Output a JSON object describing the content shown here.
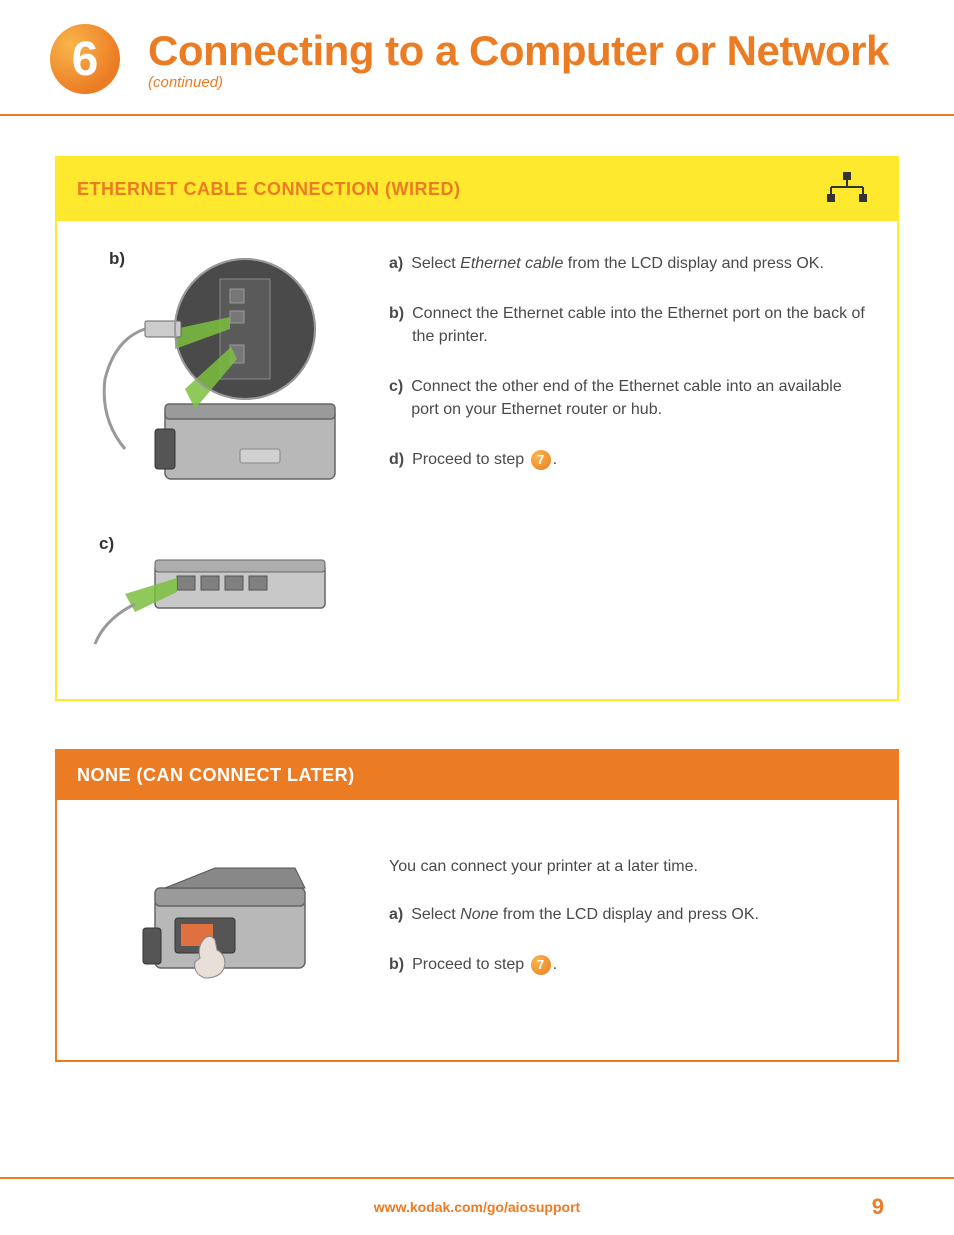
{
  "colors": {
    "orange": "#ec7c24",
    "yellow": "#ffe92e",
    "white": "#ffffff",
    "text": "#4a4a4a",
    "circle_gradient_light": "#f9b54a",
    "circle_gradient_dark": "#ec7c24"
  },
  "header": {
    "step_number": "6",
    "title": "Connecting to a Computer or Network",
    "subtitle": "(continued)"
  },
  "section1": {
    "title": "ETHERNET CABLE CONNECTION (WIRED)",
    "header_bg": "#ffe92e",
    "header_text_color": "#ec7c24",
    "border_color": "#ffe92e",
    "illus_b_label": "b)",
    "illus_c_label": "c)",
    "steps": [
      {
        "letter": "a)",
        "pre": "Select ",
        "italic": "Ethernet cable",
        "post": " from the LCD display and press OK."
      },
      {
        "letter": "b)",
        "pre": "Connect the Ethernet cable into the Ethernet port on the back of the printer.",
        "italic": "",
        "post": ""
      },
      {
        "letter": "c)",
        "pre": "Connect the other end of the Ethernet cable into an available port on your Ethernet router or hub.",
        "italic": "",
        "post": ""
      },
      {
        "letter": "d)",
        "pre": "Proceed to step ",
        "italic": "",
        "post": ".",
        "step_ref": "7"
      }
    ]
  },
  "section2": {
    "title": "NONE (CAN CONNECT LATER)",
    "header_bg": "#ec7c24",
    "header_text_color": "#ffffff",
    "border_color": "#ec7c24",
    "intro": "You can connect your printer at a later time.",
    "steps": [
      {
        "letter": "a)",
        "pre": "Select ",
        "italic": "None",
        "post": " from the LCD display and press OK."
      },
      {
        "letter": "b)",
        "pre": "Proceed to step ",
        "italic": "",
        "post": ".",
        "step_ref": "7"
      }
    ]
  },
  "footer": {
    "url": "www.kodak.com/go/aiosupport",
    "page_number": "9"
  }
}
